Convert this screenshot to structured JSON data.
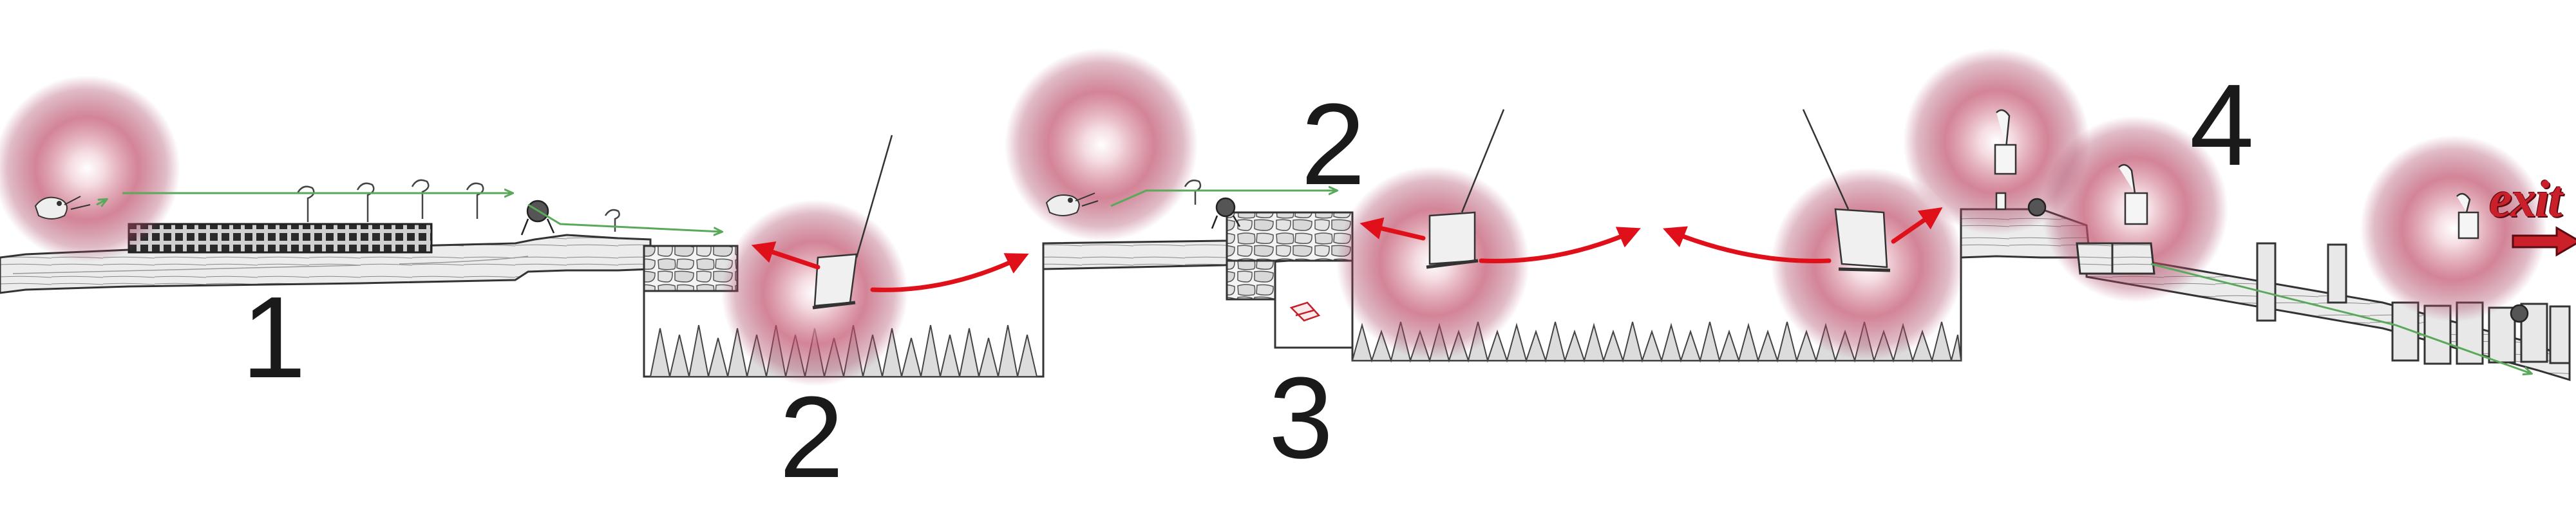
{
  "level": {
    "stage_labels": [
      "1",
      "2",
      "2",
      "3",
      "4"
    ],
    "exit_sign": "exit",
    "colors": {
      "light_glow": "#c0506a",
      "swing_arrow": "#e0101a",
      "path_arrow": "#5aa85a",
      "sketch_ink": "#333333",
      "exit_red": "#c9202a"
    },
    "icons": [
      "bird-icon",
      "question-sign-icon",
      "gear-crank-icon",
      "hanging-swing-icon",
      "lantern-icon",
      "cart-icon",
      "crate-icon",
      "exit-arrow-icon"
    ]
  }
}
